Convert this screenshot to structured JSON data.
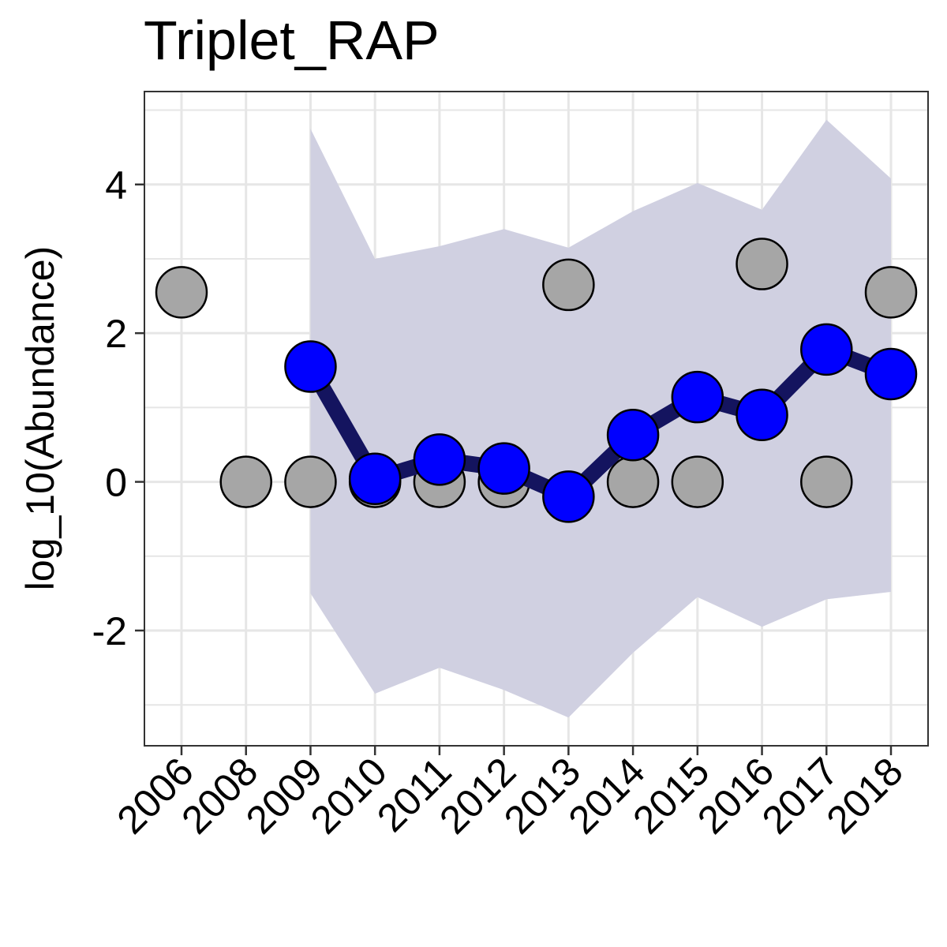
{
  "chart_data": {
    "type": "line",
    "title": "Triplet_RAP",
    "xlabel": "",
    "ylabel": "log_10(Abundance)",
    "categories": [
      "2006",
      "2008",
      "2009",
      "2010",
      "2011",
      "2012",
      "2013",
      "2014",
      "2015",
      "2016",
      "2017",
      "2018"
    ],
    "ylim": [
      -3.55,
      5.25
    ],
    "yticks": [
      -2,
      0,
      2,
      4
    ],
    "grid": true,
    "observed": {
      "values": [
        2.55,
        0,
        0,
        0,
        0,
        0,
        2.65,
        0,
        0,
        2.93,
        0,
        2.55
      ]
    },
    "estimate": {
      "x": [
        "2009",
        "2010",
        "2011",
        "2012",
        "2013",
        "2014",
        "2015",
        "2016",
        "2017",
        "2018"
      ],
      "values": [
        1.55,
        0.04,
        0.3,
        0.18,
        -0.2,
        0.63,
        1.14,
        0.9,
        1.78,
        1.45
      ],
      "upper": [
        4.75,
        3.0,
        3.17,
        3.4,
        3.15,
        3.64,
        4.02,
        3.66,
        4.87,
        4.08
      ],
      "lower": [
        -1.5,
        -2.85,
        -2.5,
        -2.8,
        -3.17,
        -2.3,
        -1.55,
        -1.95,
        -1.58,
        -1.48
      ]
    },
    "colors": {
      "observed_fill": "#a6a6a6",
      "estimate_fill": "#0000ff",
      "estimate_line": "#14145f",
      "ribbon_fill": "#d0d0e1",
      "grid": "#e6e6e6",
      "point_stroke": "#000000"
    }
  }
}
